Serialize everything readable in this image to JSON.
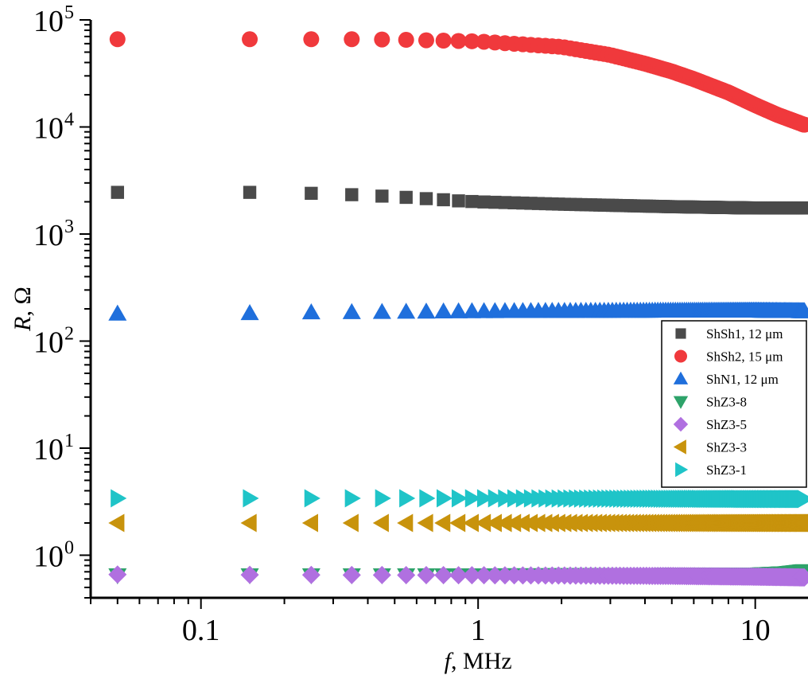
{
  "chart_data": {
    "type": "scatter",
    "title": "",
    "xlabel_italic": "f",
    "xlabel_rest": ", MHz",
    "ylabel_italic": "R",
    "ylabel_rest": ",  Ω",
    "xscale": "log",
    "yscale": "log",
    "xlim": [
      0.04,
      15.5
    ],
    "ylim": [
      0.4,
      100000
    ],
    "x_ticks": [
      {
        "value": 0.1,
        "label": "0.1"
      },
      {
        "value": 1,
        "label": "1"
      },
      {
        "value": 10,
        "label": "10"
      }
    ],
    "y_ticks": [
      {
        "value": 1,
        "base": "10",
        "exp": "0"
      },
      {
        "value": 10,
        "base": "10",
        "exp": "1"
      },
      {
        "value": 100,
        "base": "10",
        "exp": "2"
      },
      {
        "value": 1000,
        "base": "10",
        "exp": "3"
      },
      {
        "value": 10000,
        "base": "10",
        "exp": "4"
      },
      {
        "value": 100000,
        "base": "10",
        "exp": "5"
      }
    ],
    "grid": false,
    "legend_position": "right-middle",
    "frequency_grid": {
      "start": 0.05,
      "step": 0.1,
      "end": 15.05
    },
    "series": [
      {
        "name": "ShSh1, 12 μm",
        "marker": "square",
        "color": "#4a4a4a",
        "points": [
          [
            0.05,
            2450
          ],
          [
            0.15,
            2450
          ],
          [
            0.25,
            2400
          ],
          [
            0.35,
            2330
          ],
          [
            0.45,
            2260
          ],
          [
            0.55,
            2200
          ],
          [
            0.65,
            2140
          ],
          [
            0.75,
            2090
          ],
          [
            0.85,
            2040
          ],
          [
            1,
            2000
          ],
          [
            2,
            1900
          ],
          [
            5,
            1800
          ],
          [
            10,
            1750
          ],
          [
            15,
            1750
          ]
        ]
      },
      {
        "name": "ShSh2, 15 μm",
        "marker": "circle",
        "color": "#f0393c",
        "points": [
          [
            0.05,
            66000
          ],
          [
            0.15,
            66000
          ],
          [
            0.25,
            66000
          ],
          [
            0.35,
            66000
          ],
          [
            0.5,
            65500
          ],
          [
            1,
            63000
          ],
          [
            2,
            56000
          ],
          [
            3,
            47000
          ],
          [
            4,
            39000
          ],
          [
            5,
            33000
          ],
          [
            6,
            28000
          ],
          [
            8,
            21000
          ],
          [
            10,
            16000
          ],
          [
            12,
            13000
          ],
          [
            15,
            10500
          ]
        ]
      },
      {
        "name": "ShN1, 12 μm",
        "marker": "triangle-up",
        "color": "#1f6fdc",
        "points": [
          [
            0.05,
            180
          ],
          [
            0.15,
            182
          ],
          [
            0.25,
            185
          ],
          [
            0.5,
            187
          ],
          [
            1,
            190
          ],
          [
            5,
            192
          ],
          [
            10,
            192
          ],
          [
            15,
            190
          ]
        ]
      },
      {
        "name": "ShZ3-8",
        "marker": "triangle-down",
        "color": "#2ea36a",
        "points": [
          [
            0.05,
            0.65
          ],
          [
            1,
            0.65
          ],
          [
            10,
            0.66
          ],
          [
            13,
            0.68
          ],
          [
            15,
            0.71
          ]
        ]
      },
      {
        "name": "ShZ3-5",
        "marker": "diamond",
        "color": "#b070e0",
        "points": [
          [
            0.05,
            0.66
          ],
          [
            1,
            0.65
          ],
          [
            5,
            0.64
          ],
          [
            10,
            0.63
          ],
          [
            15,
            0.62
          ]
        ]
      },
      {
        "name": "ShZ3-3",
        "marker": "triangle-left",
        "color": "#c8930c",
        "points": [
          [
            0.05,
            2.0
          ],
          [
            1,
            2.0
          ],
          [
            10,
            2.0
          ],
          [
            15,
            2.0
          ]
        ]
      },
      {
        "name": "ShZ3-1",
        "marker": "triangle-right",
        "color": "#1fc4c8",
        "points": [
          [
            0.05,
            3.4
          ],
          [
            1,
            3.4
          ],
          [
            10,
            3.35
          ],
          [
            15,
            3.35
          ]
        ]
      }
    ]
  }
}
